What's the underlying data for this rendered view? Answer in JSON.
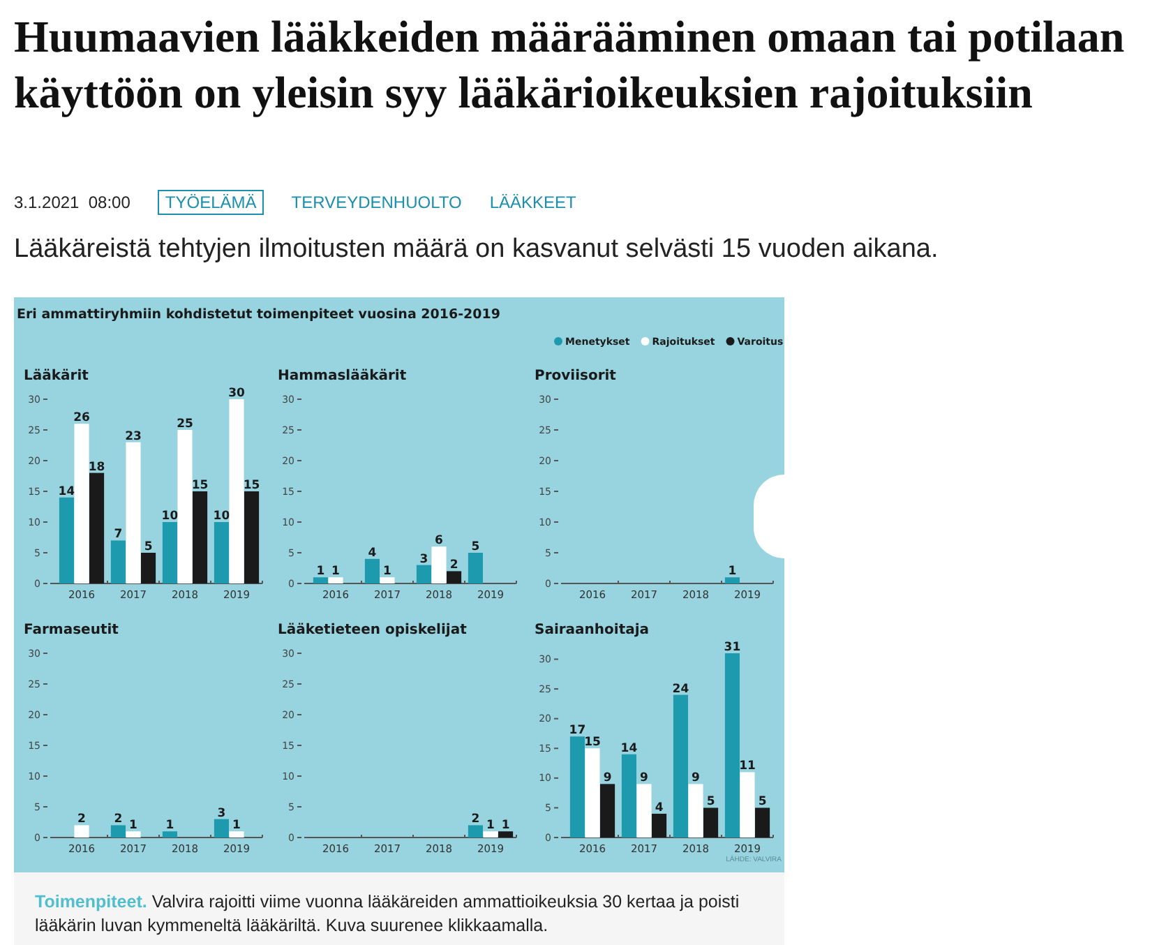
{
  "chart_data": [
    {
      "type": "other",
      "title": "Huumaavien lääkkeiden määrääminen omaan tai potilaan käyttöön on yleisin syy lääkärioikeuksien rajoituksiin",
      "subtitle": "Lääkäreistä tehtyjen ilmoitusten määrä on kasvanut selvästi 15 vuoden aikana.",
      "annotations": [
        "3.1.2021  08:00",
        "TYÖELÄMÄ",
        "TERVEYDENHUOLTO",
        "LÄÄKKEET",
        "Eri ammattiryhmiin kohdistetut toimenpiteet vuosina 2016-2019",
        "Toimenpiteet.",
        "Valvira rajoitti viime vuonna lääkäreiden ammattioikeuksia 30 kertaa ja poisti lääkärin luvan kymmeneltä lääkäriltä. Kuva suurenee klikkaamalla.",
        "LÄHDE: VALVIRA"
      ]
    },
    {
      "type": "bar",
      "title": "Lääkärit",
      "categories": [
        "2016",
        "2017",
        "2018",
        "2019"
      ],
      "ylim": [
        0,
        30
      ],
      "yticks": [
        0,
        5,
        10,
        15,
        20,
        25,
        30
      ],
      "data_labels": true,
      "series": [
        {
          "color": "#1e9aae",
          "values": [
            14,
            7,
            10,
            10
          ]
        },
        {
          "color": "#ffffff",
          "values": [
            26,
            23,
            25,
            30
          ]
        },
        {
          "color": "#1a1a1a",
          "values": [
            18,
            5,
            15,
            15
          ]
        }
      ]
    },
    {
      "type": "bar",
      "title": "Hammaslääkärit",
      "categories": [
        "2016",
        "2017",
        "2018",
        "2019"
      ],
      "ylim": [
        0,
        30
      ],
      "yticks": [
        0,
        5,
        10,
        15,
        20,
        25,
        30
      ],
      "data_labels": true,
      "series": [
        {
          "color": "#1e9aae",
          "values": [
            1,
            4,
            3,
            5
          ]
        },
        {
          "color": "#ffffff",
          "values": [
            1,
            1,
            6,
            null
          ]
        },
        {
          "color": "#1a1a1a",
          "values": [
            null,
            null,
            2,
            null
          ]
        }
      ]
    },
    {
      "type": "bar",
      "title": "Proviisorit",
      "categories": [
        "2016",
        "2017",
        "2018",
        "2019"
      ],
      "ylim": [
        0,
        30
      ],
      "yticks": [
        0,
        5,
        10,
        15,
        20,
        25,
        30
      ],
      "data_labels": true,
      "legend": "top right",
      "series": [
        {
          "name": "Menetykset",
          "color": "#1e9aae",
          "values": [
            null,
            null,
            null,
            1
          ]
        },
        {
          "name": "Rajoitukset",
          "color": "#ffffff",
          "values": [
            null,
            null,
            null,
            null
          ]
        },
        {
          "name": "Varoitus",
          "color": "#1a1a1a",
          "values": [
            null,
            null,
            null,
            null
          ]
        }
      ]
    },
    {
      "type": "bar",
      "title": "Farmaseutit",
      "categories": [
        "2016",
        "2017",
        "2018",
        "2019"
      ],
      "ylim": [
        0,
        30
      ],
      "yticks": [
        0,
        5,
        10,
        15,
        20,
        25,
        30
      ],
      "data_labels": true,
      "series": [
        {
          "color": "#1e9aae",
          "values": [
            null,
            2,
            1,
            3
          ]
        },
        {
          "color": "#ffffff",
          "values": [
            2,
            1,
            null,
            1
          ]
        }
      ]
    },
    {
      "type": "bar",
      "title": "Lääketieteen opiskelijat",
      "categories": [
        "2016",
        "2017",
        "2018",
        "2019"
      ],
      "ylim": [
        0,
        30
      ],
      "yticks": [
        0,
        5,
        10,
        15,
        20,
        25,
        30
      ],
      "data_labels": true,
      "series": [
        {
          "color": "#1e9aae",
          "values": [
            null,
            null,
            null,
            2
          ]
        },
        {
          "color": "#ffffff",
          "values": [
            null,
            null,
            null,
            1
          ]
        },
        {
          "color": "#1a1a1a",
          "values": [
            null,
            null,
            null,
            1
          ]
        }
      ]
    },
    {
      "type": "bar",
      "title": "Sairaanhoitaja",
      "categories": [
        "2016",
        "2017",
        "2018",
        "2019"
      ],
      "ylim": [
        0,
        31
      ],
      "yticks": [
        0,
        5,
        10,
        15,
        20,
        25,
        30
      ],
      "data_labels": true,
      "series": [
        {
          "color": "#1e9aae",
          "values": [
            17,
            14,
            24,
            31
          ]
        },
        {
          "color": "#ffffff",
          "values": [
            15,
            9,
            9,
            11
          ]
        },
        {
          "color": "#1a1a1a",
          "values": [
            9,
            4,
            5,
            5
          ]
        }
      ]
    }
  ]
}
